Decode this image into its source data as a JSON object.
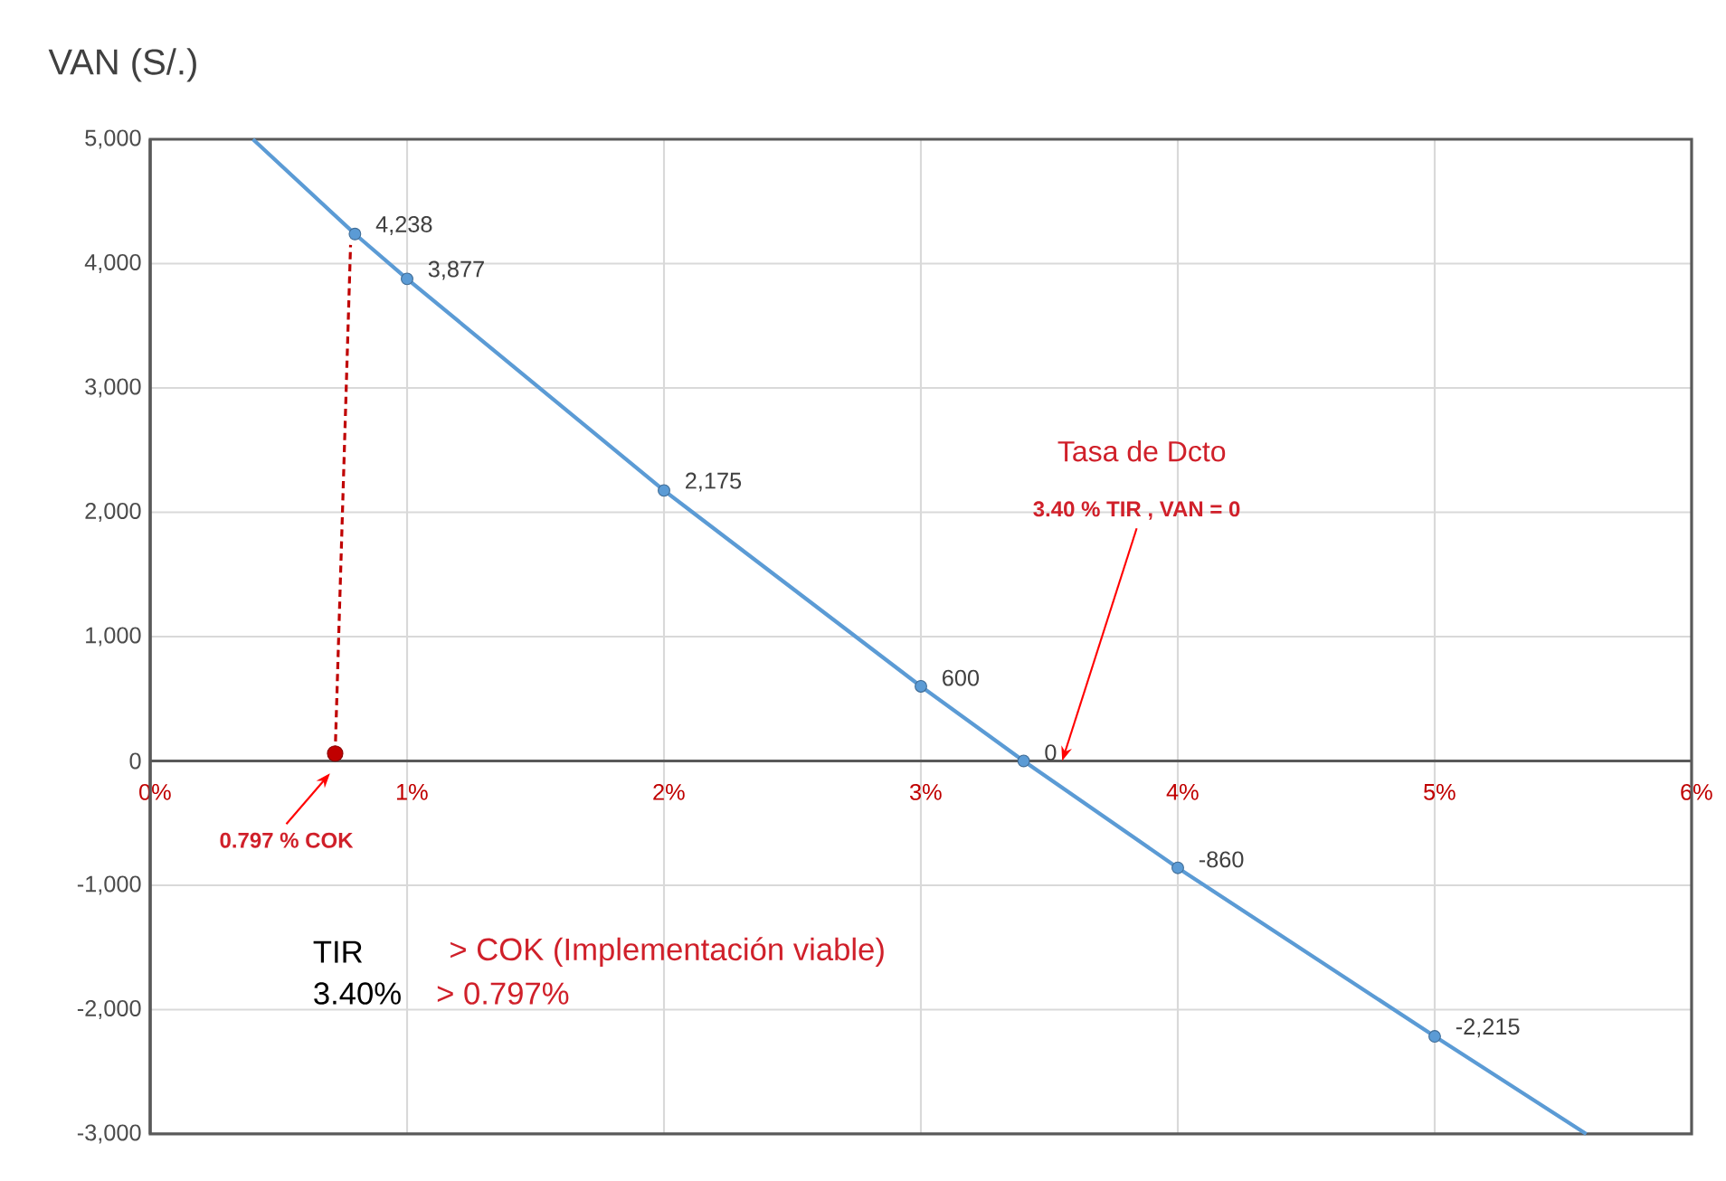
{
  "chart_data": {
    "type": "line",
    "title": "VAN (S/.)",
    "xlim": [
      0,
      6
    ],
    "ylim": [
      -3000,
      5000
    ],
    "xticks": [
      {
        "value": 0,
        "label": "0%"
      },
      {
        "value": 1,
        "label": "1%"
      },
      {
        "value": 2,
        "label": "2%"
      },
      {
        "value": 3,
        "label": "3%"
      },
      {
        "value": 4,
        "label": "4%"
      },
      {
        "value": 5,
        "label": "5%"
      },
      {
        "value": 6,
        "label": "6%"
      }
    ],
    "yticks": [
      {
        "value": -3000,
        "label": "-3,000"
      },
      {
        "value": -2000,
        "label": "-2,000"
      },
      {
        "value": -1000,
        "label": "-1,000"
      },
      0,
      {
        "value": 1000,
        "label": "1,000"
      },
      {
        "value": 2000,
        "label": "2,000"
      },
      {
        "value": 3000,
        "label": "3,000"
      },
      {
        "value": 4000,
        "label": "4,000"
      },
      {
        "value": 5000,
        "label": "5,000"
      }
    ],
    "grid": true,
    "series": [
      {
        "color": "#5b9bd5",
        "marker": "none",
        "x": [
          0.4,
          0.797,
          1,
          2,
          3,
          3.4,
          4,
          5,
          5.59
        ],
        "values": [
          5000,
          4238,
          3877,
          2175,
          600,
          0,
          -860,
          -2215,
          -3000
        ]
      },
      {
        "type": "scatter",
        "color": "#5b9bd5",
        "marker": "circle",
        "x": [
          0.797,
          1,
          2,
          3,
          3.4,
          4,
          5
        ],
        "values": [
          4238,
          3877,
          2175,
          600,
          0,
          -860,
          -2215
        ],
        "value_labels": [
          "4,238",
          "3,877",
          "2,175",
          "600",
          "0",
          "-860",
          "-2,215"
        ]
      },
      {
        "color": "#c00000",
        "marker": "none",
        "line_style": "dashed",
        "x": [
          0.72,
          0.78
        ],
        "values": [
          60,
          4150
        ]
      },
      {
        "type": "scatter",
        "color": "#c00000",
        "marker": "circle",
        "x": [
          0.72
        ],
        "values": [
          60
        ]
      }
    ],
    "annotations": [
      "Tasa de Dcto",
      "3.40 % TIR , VAN = 0",
      "0.797 % COK",
      "TIR",
      "> COK (Implementación viable)",
      "3.40%",
      "> 0.797%"
    ]
  }
}
